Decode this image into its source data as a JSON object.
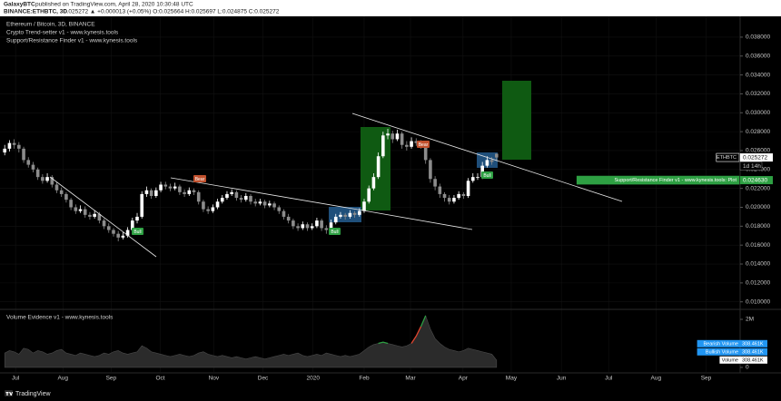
{
  "header": {
    "author": "GalaxyBTC",
    "published": "published on TradingView.com, April 28, 2020 10:30:48 UTC",
    "symbol": "BINANCE:ETHBTC, 3D",
    "quote": "0.025272 ▲ +0.000013 (+0.05%) O:0.025664 H:0.025697 L:0.024875 C:0.025272"
  },
  "chart_data": {
    "type": "candlestick",
    "title": "Ethereum / Bitcoin, 3D, BINANCE",
    "indicators": [
      "Crypto Trend-setter v1 - www.kynesis.tools",
      "Support/Resistance Finder v1 - www.kynesis.tools"
    ],
    "up_color": "#ffffff",
    "down_color": "#8c8c8c",
    "grid": true,
    "xlim": [
      -1,
      155.5
    ],
    "ylim": [
      0.0093,
      0.0402
    ],
    "xticks": [
      {
        "value": 2.3,
        "label": "Jul"
      },
      {
        "value": 12.3,
        "label": "Aug"
      },
      {
        "value": 22.5,
        "label": "Sep"
      },
      {
        "value": 32.9,
        "label": "Oct"
      },
      {
        "value": 44.2,
        "label": "Nov"
      },
      {
        "value": 54.6,
        "label": "Dec"
      },
      {
        "value": 65.2,
        "label": "2020"
      },
      {
        "value": 76,
        "label": "Feb"
      },
      {
        "value": 85.8,
        "label": "Mar"
      },
      {
        "value": 96.9,
        "label": "Apr"
      },
      {
        "value": 107.1,
        "label": "May"
      },
      {
        "value": 117.7,
        "label": "Jun"
      },
      {
        "value": 127.7,
        "label": "Jul"
      },
      {
        "value": 137.7,
        "label": "Aug"
      },
      {
        "value": 148.3,
        "label": "Sep"
      }
    ],
    "yticks": [
      {
        "value": 0.01,
        "label": "0.010000"
      },
      {
        "value": 0.012,
        "label": "0.012000"
      },
      {
        "value": 0.014,
        "label": "0.014000"
      },
      {
        "value": 0.016,
        "label": "0.016000"
      },
      {
        "value": 0.018,
        "label": "0.018000"
      },
      {
        "value": 0.02,
        "label": "0.020000"
      },
      {
        "value": 0.022,
        "label": "0.022000"
      },
      {
        "value": 0.024,
        "label": "0.024000"
      },
      {
        "value": 0.026,
        "label": "0.026000"
      },
      {
        "value": 0.028,
        "label": "0.028000"
      },
      {
        "value": 0.03,
        "label": "0.030000"
      },
      {
        "value": 0.032,
        "label": "0.032000"
      },
      {
        "value": 0.034,
        "label": "0.034000"
      },
      {
        "value": 0.036,
        "label": "0.036000"
      },
      {
        "value": 0.038,
        "label": "0.038000"
      }
    ],
    "candles": [
      [
        0.0258,
        0.0266,
        0.0255,
        0.0262
      ],
      [
        0.0262,
        0.0271,
        0.0259,
        0.0268
      ],
      [
        0.0268,
        0.0272,
        0.0262,
        0.0266
      ],
      [
        0.0266,
        0.0269,
        0.0258,
        0.0262
      ],
      [
        0.0262,
        0.0264,
        0.0247,
        0.025
      ],
      [
        0.025,
        0.0253,
        0.0242,
        0.0245
      ],
      [
        0.0245,
        0.0248,
        0.0237,
        0.024
      ],
      [
        0.024,
        0.0242,
        0.0229,
        0.0232
      ],
      [
        0.0232,
        0.0235,
        0.0225,
        0.0228
      ],
      [
        0.0228,
        0.0236,
        0.0226,
        0.0232
      ],
      [
        0.0232,
        0.0234,
        0.0221,
        0.0224
      ],
      [
        0.0224,
        0.0227,
        0.0215,
        0.0218
      ],
      [
        0.0218,
        0.0221,
        0.0211,
        0.0214
      ],
      [
        0.0214,
        0.0216,
        0.0205,
        0.0208
      ],
      [
        0.0208,
        0.021,
        0.0197,
        0.02
      ],
      [
        0.02,
        0.0203,
        0.0193,
        0.0196
      ],
      [
        0.0196,
        0.0202,
        0.0194,
        0.0198
      ],
      [
        0.0198,
        0.0201,
        0.0189,
        0.0192
      ],
      [
        0.0192,
        0.0195,
        0.0187,
        0.019
      ],
      [
        0.019,
        0.0197,
        0.0188,
        0.0193
      ],
      [
        0.0193,
        0.0195,
        0.0183,
        0.0186
      ],
      [
        0.0186,
        0.0188,
        0.0177,
        0.018
      ],
      [
        0.018,
        0.0183,
        0.0173,
        0.0176
      ],
      [
        0.0176,
        0.0178,
        0.0169,
        0.0172
      ],
      [
        0.0172,
        0.0175,
        0.0164,
        0.0168
      ],
      [
        0.0168,
        0.0174,
        0.0166,
        0.017
      ],
      [
        0.017,
        0.0179,
        0.0168,
        0.0176
      ],
      [
        0.0176,
        0.0189,
        0.0174,
        0.0186
      ],
      [
        0.0186,
        0.0194,
        0.0183,
        0.019
      ],
      [
        0.019,
        0.0217,
        0.0188,
        0.0214
      ],
      [
        0.0214,
        0.0222,
        0.0211,
        0.0218
      ],
      [
        0.0218,
        0.022,
        0.0209,
        0.0212
      ],
      [
        0.0212,
        0.0221,
        0.021,
        0.0218
      ],
      [
        0.0218,
        0.0227,
        0.0216,
        0.0224
      ],
      [
        0.0224,
        0.0227,
        0.0219,
        0.0222
      ],
      [
        0.0222,
        0.0225,
        0.0217,
        0.022
      ],
      [
        0.022,
        0.0226,
        0.0218,
        0.0222
      ],
      [
        0.0222,
        0.0224,
        0.0213,
        0.0216
      ],
      [
        0.0216,
        0.0219,
        0.0211,
        0.0214
      ],
      [
        0.0214,
        0.0221,
        0.0212,
        0.0218
      ],
      [
        0.0218,
        0.022,
        0.0213,
        0.0216
      ],
      [
        0.0216,
        0.0218,
        0.0203,
        0.0206
      ],
      [
        0.0206,
        0.0208,
        0.0195,
        0.0198
      ],
      [
        0.0198,
        0.0201,
        0.0193,
        0.0196
      ],
      [
        0.0196,
        0.0203,
        0.0194,
        0.02
      ],
      [
        0.02,
        0.0209,
        0.0198,
        0.0206
      ],
      [
        0.0206,
        0.0213,
        0.0204,
        0.021
      ],
      [
        0.021,
        0.0217,
        0.0208,
        0.0214
      ],
      [
        0.0214,
        0.0219,
        0.0212,
        0.0216
      ],
      [
        0.0216,
        0.0218,
        0.0207,
        0.021
      ],
      [
        0.021,
        0.0213,
        0.0205,
        0.0208
      ],
      [
        0.0208,
        0.0215,
        0.0206,
        0.0212
      ],
      [
        0.0212,
        0.0214,
        0.0203,
        0.0206
      ],
      [
        0.0206,
        0.0209,
        0.0201,
        0.0204
      ],
      [
        0.0204,
        0.0209,
        0.0202,
        0.0206
      ],
      [
        0.0206,
        0.0208,
        0.0199,
        0.0202
      ],
      [
        0.0202,
        0.0207,
        0.02,
        0.0204
      ],
      [
        0.0204,
        0.0206,
        0.0197,
        0.02
      ],
      [
        0.02,
        0.0202,
        0.0193,
        0.0196
      ],
      [
        0.0196,
        0.0198,
        0.0187,
        0.019
      ],
      [
        0.019,
        0.0193,
        0.0183,
        0.0186
      ],
      [
        0.0186,
        0.0188,
        0.0177,
        0.018
      ],
      [
        0.018,
        0.0183,
        0.0175,
        0.0178
      ],
      [
        0.0178,
        0.0185,
        0.0176,
        0.0182
      ],
      [
        0.0182,
        0.0184,
        0.0175,
        0.0178
      ],
      [
        0.0178,
        0.0183,
        0.0176,
        0.018
      ],
      [
        0.018,
        0.0189,
        0.0178,
        0.0186
      ],
      [
        0.0186,
        0.0188,
        0.0175,
        0.0178
      ],
      [
        0.0178,
        0.0181,
        0.0172,
        0.0176
      ],
      [
        0.0176,
        0.0187,
        0.0174,
        0.0184
      ],
      [
        0.0184,
        0.0193,
        0.0182,
        0.019
      ],
      [
        0.019,
        0.0195,
        0.0188,
        0.0192
      ],
      [
        0.0192,
        0.0194,
        0.0187,
        0.019
      ],
      [
        0.019,
        0.0197,
        0.0188,
        0.0194
      ],
      [
        0.0194,
        0.0196,
        0.0189,
        0.0192
      ],
      [
        0.0192,
        0.0199,
        0.019,
        0.0196
      ],
      [
        0.0196,
        0.0209,
        0.0194,
        0.0206
      ],
      [
        0.0206,
        0.0223,
        0.0204,
        0.022
      ],
      [
        0.022,
        0.0236,
        0.0218,
        0.0232
      ],
      [
        0.0232,
        0.0258,
        0.023,
        0.0254
      ],
      [
        0.0254,
        0.028,
        0.0252,
        0.0276
      ],
      [
        0.0276,
        0.0283,
        0.0272,
        0.0278
      ],
      [
        0.0278,
        0.0281,
        0.0268,
        0.0272
      ],
      [
        0.0272,
        0.0282,
        0.027,
        0.0278
      ],
      [
        0.0278,
        0.028,
        0.0262,
        0.0266
      ],
      [
        0.0266,
        0.027,
        0.026,
        0.0264
      ],
      [
        0.0264,
        0.0274,
        0.0262,
        0.027
      ],
      [
        0.027,
        0.0273,
        0.0265,
        0.0268
      ],
      [
        0.0268,
        0.0271,
        0.0262,
        0.0266
      ],
      [
        0.0266,
        0.0268,
        0.0246,
        0.025
      ],
      [
        0.025,
        0.0252,
        0.0226,
        0.023
      ],
      [
        0.023,
        0.0233,
        0.0218,
        0.0222
      ],
      [
        0.0222,
        0.0225,
        0.021,
        0.0214
      ],
      [
        0.0214,
        0.0216,
        0.0206,
        0.021
      ],
      [
        0.021,
        0.0213,
        0.0203,
        0.0206
      ],
      [
        0.0206,
        0.0213,
        0.0204,
        0.021
      ],
      [
        0.021,
        0.0217,
        0.0208,
        0.0214
      ],
      [
        0.0214,
        0.0216,
        0.0209,
        0.0212
      ],
      [
        0.0212,
        0.0231,
        0.021,
        0.0228
      ],
      [
        0.0228,
        0.0236,
        0.0226,
        0.0232
      ],
      [
        0.0232,
        0.0236,
        0.0229,
        0.0232
      ],
      [
        0.0232,
        0.0248,
        0.023,
        0.0244
      ],
      [
        0.0244,
        0.0254,
        0.0242,
        0.025
      ],
      [
        0.025,
        0.0253,
        0.0245,
        0.0248
      ],
      [
        0.025664,
        0.025697,
        0.024875,
        0.025272
      ]
    ],
    "signals": [
      "Bull",
      "Bear",
      "Bull",
      "Bear",
      "Bull"
    ],
    "price_tags": [
      {
        "name": "ETHBTC",
        "value": 0.025272,
        "label": "0.025272",
        "countdown": "1d 14h",
        "color": "#ffffff"
      },
      {
        "name": "Support/Resistance Finder v1 - www.kynesis.tools: Plot",
        "value": 0.02463,
        "label": "0.024630",
        "color": "#2ea043"
      }
    ],
    "volume": {
      "title": "Volume Evidence v1 - www.kynesis.tools",
      "ylim": [
        -0.19,
        2.34
      ],
      "yticks": [
        {
          "value": 2,
          "label": "2M"
        },
        0
      ],
      "values": [
        0.6,
        0.7,
        0.65,
        0.55,
        0.8,
        0.75,
        0.6,
        0.7,
        0.65,
        0.55,
        0.6,
        0.7,
        0.75,
        0.6,
        0.55,
        0.5,
        0.6,
        0.55,
        0.5,
        0.45,
        0.5,
        0.6,
        0.55,
        0.65,
        0.7,
        0.6,
        0.55,
        0.6,
        0.65,
        0.9,
        0.8,
        0.65,
        0.6,
        0.55,
        0.5,
        0.45,
        0.5,
        0.55,
        0.5,
        0.45,
        0.5,
        0.6,
        0.65,
        0.55,
        0.5,
        0.45,
        0.5,
        0.45,
        0.4,
        0.45,
        0.4,
        0.35,
        0.4,
        0.45,
        0.4,
        0.35,
        0.4,
        0.45,
        0.5,
        0.55,
        0.5,
        0.55,
        0.6,
        0.5,
        0.45,
        0.5,
        0.55,
        0.5,
        0.6,
        0.55,
        0.5,
        0.45,
        0.5,
        0.45,
        0.5,
        0.55,
        0.7,
        0.85,
        0.95,
        1.0,
        1.05,
        1.0,
        0.95,
        0.9,
        0.85,
        0.9,
        1.0,
        1.3,
        1.7,
        2.15,
        1.6,
        1.2,
        1.0,
        0.85,
        0.75,
        0.7,
        0.65,
        0.7,
        0.8,
        0.75,
        0.7,
        0.65,
        0.6,
        0.55,
        0.3
      ],
      "series": [
        {
          "name": "Bearish Volume",
          "color": "#e0452f",
          "values": [
            null,
            null,
            null,
            null,
            null,
            null,
            null,
            null,
            null,
            null,
            null,
            null,
            null,
            null,
            null,
            null,
            null,
            null,
            null,
            null,
            null,
            null,
            null,
            null,
            null,
            null,
            null,
            null,
            null,
            null,
            null,
            null,
            null,
            null,
            null,
            null,
            null,
            null,
            null,
            null,
            null,
            null,
            null,
            null,
            null,
            null,
            null,
            null,
            null,
            null,
            null,
            null,
            null,
            null,
            null,
            null,
            null,
            null,
            null,
            null,
            null,
            null,
            null,
            null,
            null,
            null,
            null,
            null,
            null,
            null,
            null,
            null,
            null,
            null,
            null,
            null,
            null,
            null,
            null,
            null,
            null,
            null,
            null,
            null,
            null,
            null,
            1.0,
            1.3,
            1.7,
            null,
            null,
            null,
            null,
            null,
            null,
            null,
            null,
            null,
            null,
            null,
            null,
            null,
            null,
            null,
            null
          ],
          "last": {
            "value": 0.308461,
            "label": "308.461K"
          },
          "tag_color": "#2196f3"
        },
        {
          "name": "Bullish Volume",
          "color": "#2ea043",
          "values": [
            null,
            null,
            null,
            null,
            null,
            null,
            null,
            null,
            null,
            null,
            null,
            null,
            null,
            null,
            null,
            null,
            null,
            null,
            null,
            null,
            null,
            null,
            null,
            null,
            null,
            null,
            null,
            null,
            null,
            null,
            null,
            null,
            null,
            null,
            null,
            null,
            null,
            null,
            null,
            null,
            null,
            null,
            null,
            null,
            null,
            null,
            null,
            null,
            null,
            null,
            null,
            null,
            null,
            null,
            null,
            null,
            null,
            null,
            null,
            null,
            null,
            null,
            null,
            null,
            null,
            null,
            null,
            null,
            null,
            null,
            null,
            null,
            null,
            null,
            null,
            null,
            null,
            null,
            null,
            1.0,
            1.05,
            1.0,
            null,
            null,
            null,
            null,
            null,
            null,
            1.7,
            2.15,
            null,
            null,
            null,
            null,
            null,
            null,
            null,
            null,
            null,
            null,
            null,
            null,
            null,
            null,
            null
          ],
          "last": {
            "value": 0.308461,
            "label": "308.461K"
          },
          "tag_color": "#2196f3"
        },
        {
          "name": "Volume",
          "color": "#555555",
          "last": {
            "value": 0.308461,
            "label": "308.461K"
          },
          "tag_color": "#ffffff"
        }
      ]
    }
  },
  "footer": {
    "brand": "TradingView"
  }
}
